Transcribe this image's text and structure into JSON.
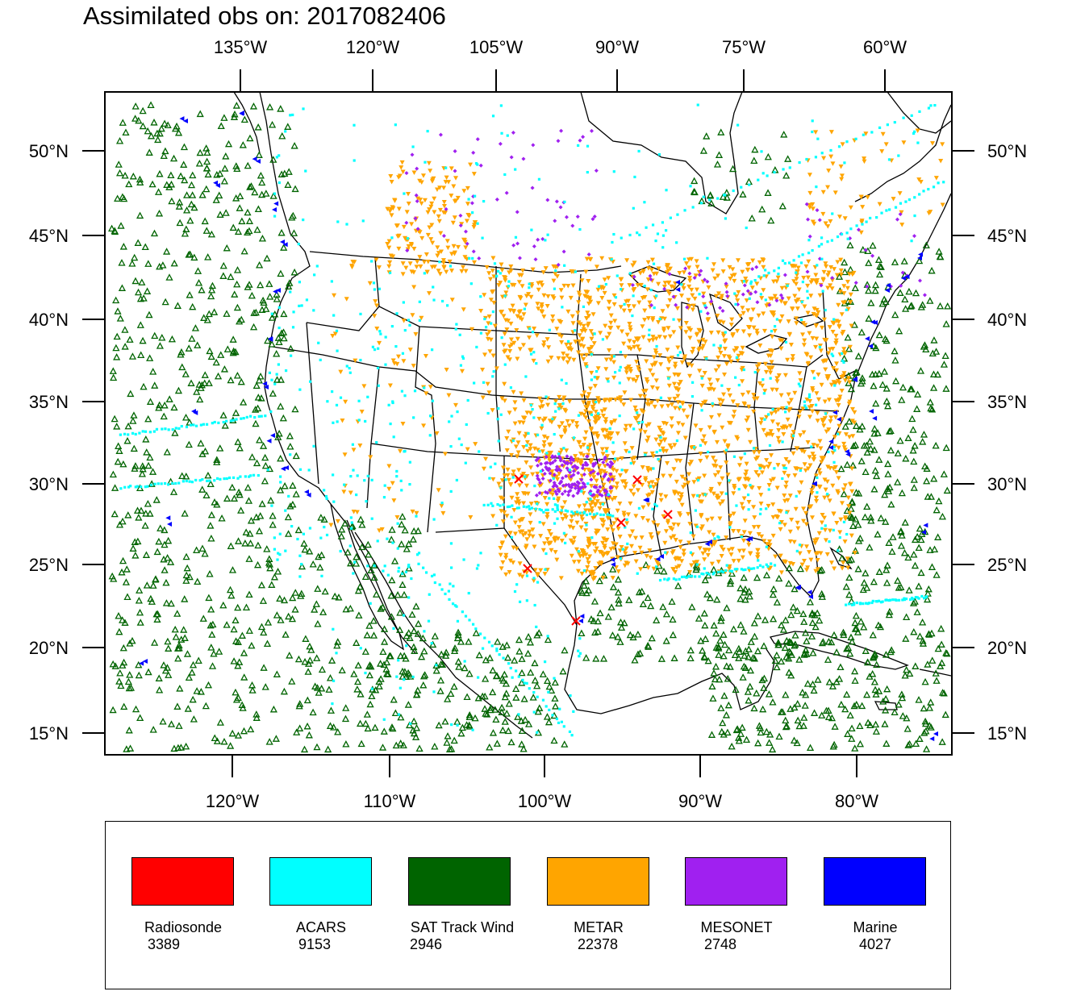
{
  "title": "Assimilated obs on: 2017082406",
  "top_lon_labels": [
    "135°W",
    "120°W",
    "105°W",
    "90°W",
    "75°W",
    "60°W"
  ],
  "bottom_lon_labels": [
    "120°W",
    "110°W",
    "100°W",
    "90°W",
    "80°W"
  ],
  "lat_labels": [
    "50°N",
    "45°N",
    "40°N",
    "35°N",
    "30°N",
    "25°N",
    "20°N",
    "15°N"
  ],
  "legend": [
    {
      "name": "Radiosonde",
      "count": "3389",
      "color": "#ff0000"
    },
    {
      "name": "ACARS",
      "count": "9153",
      "color": "#00ffff"
    },
    {
      "name": "SAT Track Wind",
      "count": "2946",
      "color": "#006400"
    },
    {
      "name": "METAR",
      "count": "22378",
      "color": "#ffa500"
    },
    {
      "name": "MESONET",
      "count": "2748",
      "color": "#a020f0"
    },
    {
      "name": "Marine",
      "count": "4027",
      "color": "#0000ff"
    }
  ],
  "symbols": {
    "Radiosonde": "x-mark",
    "ACARS": "dot",
    "SAT Track Wind": "open-triangle-up",
    "METAR": "triangle-down",
    "MESONET": "diamond",
    "Marine": "left-triangle"
  }
}
